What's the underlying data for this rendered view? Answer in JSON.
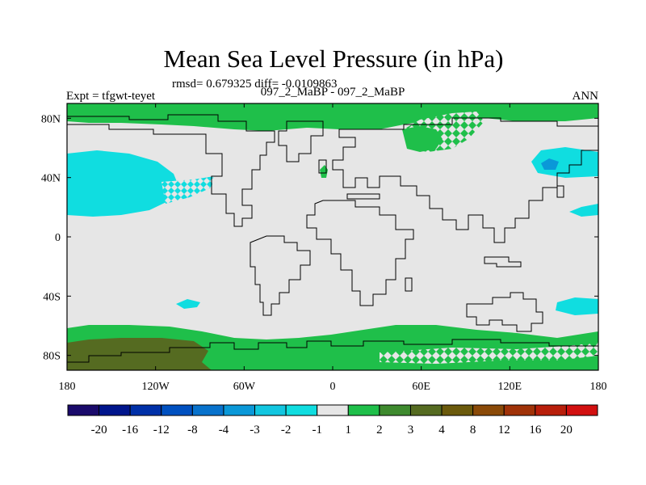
{
  "chart_data": {
    "type": "heatmap",
    "title": "Mean Sea Level Pressure (in hPa)",
    "stats_line": "rmsd= 0.679325 diff= -0.0109863",
    "left_label": "Expt = tfgwt-teyet",
    "center_label": "097_2_MaBP - 097_2_MaBP",
    "right_label": "ANN",
    "x_range": [
      -180,
      180
    ],
    "y_range": [
      -90,
      90
    ],
    "x_ticks": [
      {
        "value": -180,
        "label": "180"
      },
      {
        "value": -120,
        "label": "120W"
      },
      {
        "value": -60,
        "label": "60W"
      },
      {
        "value": 0,
        "label": "0"
      },
      {
        "value": 60,
        "label": "60E"
      },
      {
        "value": 120,
        "label": "120E"
      },
      {
        "value": 180,
        "label": "180"
      }
    ],
    "y_ticks": [
      {
        "value": 80,
        "label": "80N"
      },
      {
        "value": 40,
        "label": "40N"
      },
      {
        "value": 0,
        "label": "0"
      },
      {
        "value": -40,
        "label": "40S"
      },
      {
        "value": -80,
        "label": "80S"
      }
    ],
    "colorbar": {
      "colors": [
        "#1a0a6b",
        "#00158c",
        "#0030a8",
        "#0050c0",
        "#0872cc",
        "#0a98d8",
        "#12c6e0",
        "#10dde0",
        "#e6e6e6",
        "#1fbf4a",
        "#3e8a2e",
        "#556b21",
        "#6b5a0c",
        "#8a4a08",
        "#a03208",
        "#b81e0a",
        "#d21010"
      ],
      "labels": [
        "-20",
        "-16",
        "-12",
        "-8",
        "-4",
        "-3",
        "-2",
        "-1",
        "1",
        "2",
        "3",
        "4",
        "8",
        "12",
        "16",
        "20"
      ]
    },
    "field": {
      "background_level": "-1 to 1",
      "regions": [
        {
          "name": "north-pacific-low",
          "level": "-2 to -1",
          "lon": [
            -180,
            -120
          ],
          "lat": [
            15,
            55
          ]
        },
        {
          "name": "northwest-pacific-low",
          "level": "-2 to -1",
          "lon": [
            140,
            180
          ],
          "lat": [
            35,
            55
          ]
        },
        {
          "name": "southwest-pacific-low",
          "level": "-2 to -1",
          "lon": [
            155,
            180
          ],
          "lat": [
            -48,
            -38
          ]
        },
        {
          "name": "south-pacific-low",
          "level": "-2 to -1",
          "lon": [
            -110,
            -95
          ],
          "lat": [
            -46,
            -42
          ]
        },
        {
          "name": "arctic-high",
          "level": "1 to 2",
          "lon": [
            -180,
            180
          ],
          "lat": [
            75,
            90
          ]
        },
        {
          "name": "southern-ocean-high",
          "level": "1 to 2",
          "lon": [
            -180,
            180
          ],
          "lat": [
            -90,
            -55
          ]
        },
        {
          "name": "antarctic-high",
          "level": "3 to 4",
          "lon": [
            -180,
            -85
          ],
          "lat": [
            -90,
            -65
          ]
        }
      ]
    }
  }
}
